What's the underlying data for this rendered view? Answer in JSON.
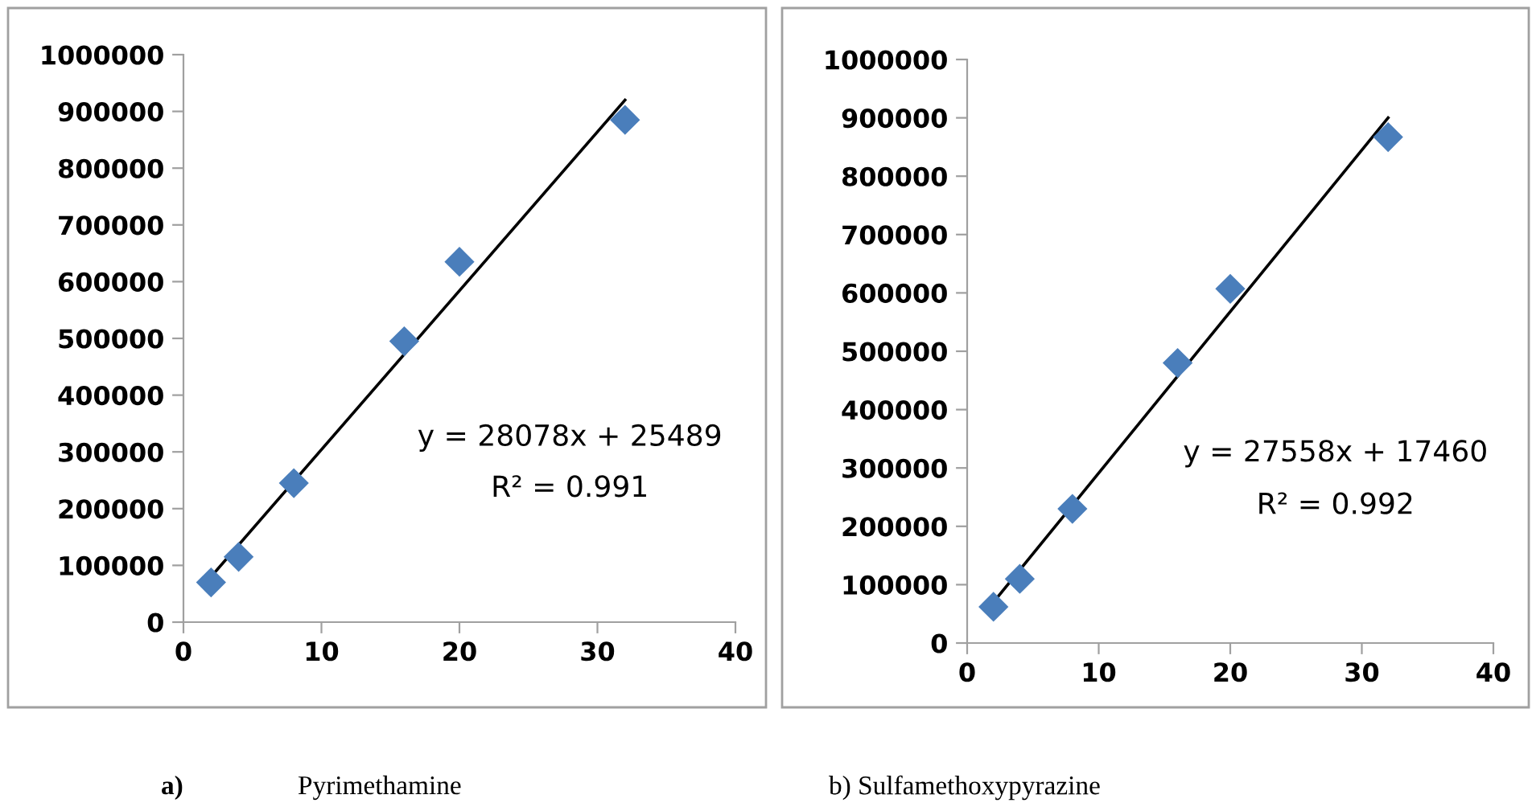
{
  "chart_data": [
    {
      "type": "scatter",
      "grid": false,
      "legend": false,
      "series": [
        {
          "color": "#4a7ebb",
          "marker": "diamond",
          "x": [
            2,
            4,
            8,
            16,
            20,
            32
          ],
          "values": [
            70000,
            115000,
            245000,
            495000,
            635000,
            885000
          ]
        },
        {
          "type": "line",
          "color": "#000000",
          "marker": "none",
          "x": [
            2,
            32
          ],
          "values": [
            80000,
            920000
          ]
        }
      ],
      "xlim": [
        0,
        40
      ],
      "xticks": [
        0,
        10,
        20,
        30,
        40
      ],
      "ylim": [
        0,
        1000000
      ],
      "yticks": [
        0,
        100000,
        200000,
        300000,
        400000,
        500000,
        600000,
        700000,
        800000,
        900000,
        1000000
      ],
      "annotations": [
        "y = 28078x + 25489",
        "R² = 0.991",
        "a)",
        "Pyrimethamine"
      ]
    },
    {
      "type": "scatter",
      "grid": false,
      "legend": false,
      "series": [
        {
          "color": "#4a7ebb",
          "marker": "diamond",
          "x": [
            2,
            4,
            8,
            16,
            20,
            32
          ],
          "values": [
            62000,
            110000,
            230000,
            480000,
            607000,
            867000
          ]
        },
        {
          "type": "line",
          "color": "#000000",
          "marker": "none",
          "x": [
            2,
            32
          ],
          "values": [
            70000,
            900000
          ]
        }
      ],
      "xlim": [
        0,
        40
      ],
      "xticks": [
        0,
        10,
        20,
        30,
        40
      ],
      "ylim": [
        0,
        1000000
      ],
      "yticks": [
        0,
        100000,
        200000,
        300000,
        400000,
        500000,
        600000,
        700000,
        800000,
        900000,
        1000000
      ],
      "annotations": [
        "y = 27558x + 17460",
        "R² = 0.992",
        "b) Sulfamethoxypyrazine"
      ]
    }
  ]
}
